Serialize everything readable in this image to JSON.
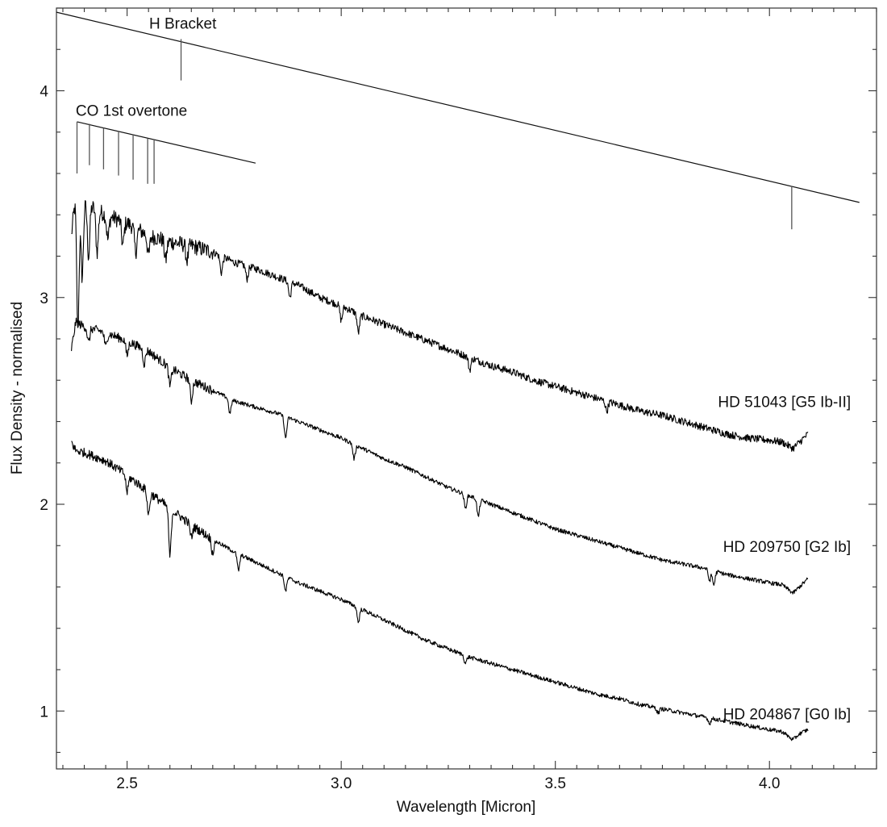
{
  "chart_data": {
    "type": "line",
    "title": "",
    "xlabel": "Wavelength [Micron]",
    "ylabel": "Flux Density - normalised",
    "xlim": [
      2.335,
      4.25
    ],
    "ylim": [
      0.72,
      4.4
    ],
    "xticks": [
      2.5,
      3.0,
      3.5,
      4.0
    ],
    "xtick_labels": [
      "2.5",
      "3.0",
      "3.5",
      "4.0"
    ],
    "yticks": [
      1,
      2,
      3,
      4
    ],
    "ytick_labels": [
      "1",
      "2",
      "3",
      "4"
    ],
    "grid": false,
    "series": [
      {
        "name": "HD 51043 [G5 Ib-II]",
        "label_at": [
          4.19,
          2.47
        ],
        "points": [
          [
            2.37,
            3.3
          ],
          [
            2.38,
            3.5
          ],
          [
            2.4,
            3.46
          ],
          [
            2.45,
            3.4
          ],
          [
            2.5,
            3.36
          ],
          [
            2.55,
            3.3
          ],
          [
            2.6,
            3.27
          ],
          [
            2.65,
            3.25
          ],
          [
            2.7,
            3.22
          ],
          [
            2.75,
            3.17
          ],
          [
            2.8,
            3.14
          ],
          [
            2.85,
            3.1
          ],
          [
            2.9,
            3.06
          ],
          [
            2.95,
            3.0
          ],
          [
            3.0,
            2.96
          ],
          [
            3.05,
            2.91
          ],
          [
            3.1,
            2.87
          ],
          [
            3.15,
            2.83
          ],
          [
            3.2,
            2.79
          ],
          [
            3.25,
            2.75
          ],
          [
            3.3,
            2.71
          ],
          [
            3.35,
            2.67
          ],
          [
            3.4,
            2.64
          ],
          [
            3.45,
            2.6
          ],
          [
            3.5,
            2.57
          ],
          [
            3.55,
            2.54
          ],
          [
            3.6,
            2.51
          ],
          [
            3.65,
            2.48
          ],
          [
            3.7,
            2.45
          ],
          [
            3.75,
            2.43
          ],
          [
            3.8,
            2.4
          ],
          [
            3.85,
            2.37
          ],
          [
            3.9,
            2.34
          ],
          [
            3.95,
            2.32
          ],
          [
            4.0,
            2.31
          ],
          [
            4.03,
            2.3
          ],
          [
            4.055,
            2.27
          ],
          [
            4.07,
            2.3
          ],
          [
            4.09,
            2.34
          ]
        ],
        "dips": [
          [
            2.385,
            2.85
          ],
          [
            2.395,
            3.1
          ],
          [
            2.41,
            3.2
          ],
          [
            2.43,
            3.22
          ],
          [
            2.455,
            3.28
          ],
          [
            2.49,
            3.25
          ],
          [
            2.52,
            3.22
          ],
          [
            2.55,
            3.2
          ],
          [
            2.59,
            3.18
          ],
          [
            2.64,
            3.18
          ],
          [
            2.72,
            3.12
          ],
          [
            2.78,
            3.09
          ],
          [
            2.88,
            3.0
          ],
          [
            3.0,
            2.89
          ],
          [
            3.04,
            2.83
          ],
          [
            3.3,
            2.65
          ],
          [
            3.62,
            2.45
          ]
        ],
        "noise": 0.018
      },
      {
        "name": "HD 209750 [G2 Ib]",
        "label_at": [
          4.19,
          1.77
        ],
        "points": [
          [
            2.37,
            2.75
          ],
          [
            2.38,
            2.88
          ],
          [
            2.4,
            2.86
          ],
          [
            2.45,
            2.83
          ],
          [
            2.5,
            2.79
          ],
          [
            2.55,
            2.74
          ],
          [
            2.6,
            2.66
          ],
          [
            2.65,
            2.6
          ],
          [
            2.7,
            2.55
          ],
          [
            2.75,
            2.5
          ],
          [
            2.8,
            2.47
          ],
          [
            2.85,
            2.44
          ],
          [
            2.9,
            2.4
          ],
          [
            2.95,
            2.36
          ],
          [
            3.0,
            2.32
          ],
          [
            3.05,
            2.27
          ],
          [
            3.1,
            2.22
          ],
          [
            3.15,
            2.18
          ],
          [
            3.2,
            2.13
          ],
          [
            3.25,
            2.08
          ],
          [
            3.3,
            2.04
          ],
          [
            3.35,
            2.0
          ],
          [
            3.4,
            1.96
          ],
          [
            3.45,
            1.92
          ],
          [
            3.5,
            1.88
          ],
          [
            3.55,
            1.85
          ],
          [
            3.6,
            1.82
          ],
          [
            3.65,
            1.79
          ],
          [
            3.7,
            1.76
          ],
          [
            3.75,
            1.73
          ],
          [
            3.8,
            1.71
          ],
          [
            3.85,
            1.69
          ],
          [
            3.9,
            1.66
          ],
          [
            3.95,
            1.64
          ],
          [
            4.0,
            1.62
          ],
          [
            4.03,
            1.61
          ],
          [
            4.055,
            1.57
          ],
          [
            4.07,
            1.6
          ],
          [
            4.09,
            1.64
          ]
        ],
        "dips": [
          [
            2.41,
            2.78
          ],
          [
            2.45,
            2.76
          ],
          [
            2.5,
            2.72
          ],
          [
            2.54,
            2.68
          ],
          [
            2.6,
            2.57
          ],
          [
            2.65,
            2.5
          ],
          [
            2.74,
            2.44
          ],
          [
            2.87,
            2.32
          ],
          [
            3.03,
            2.22
          ],
          [
            3.29,
            1.98
          ],
          [
            3.32,
            1.94
          ],
          [
            3.86,
            1.63
          ],
          [
            3.87,
            1.61
          ]
        ],
        "noise": 0.01
      },
      {
        "name": "HD 204867 [G0 Ib]",
        "label_at": [
          4.19,
          0.96
        ],
        "points": [
          [
            2.37,
            2.3
          ],
          [
            2.38,
            2.26
          ],
          [
            2.4,
            2.25
          ],
          [
            2.45,
            2.21
          ],
          [
            2.5,
            2.14
          ],
          [
            2.55,
            2.06
          ],
          [
            2.6,
            1.98
          ],
          [
            2.65,
            1.9
          ],
          [
            2.7,
            1.83
          ],
          [
            2.75,
            1.77
          ],
          [
            2.8,
            1.72
          ],
          [
            2.85,
            1.67
          ],
          [
            2.9,
            1.62
          ],
          [
            2.95,
            1.58
          ],
          [
            3.0,
            1.54
          ],
          [
            3.05,
            1.49
          ],
          [
            3.1,
            1.44
          ],
          [
            3.15,
            1.39
          ],
          [
            3.2,
            1.34
          ],
          [
            3.25,
            1.3
          ],
          [
            3.3,
            1.26
          ],
          [
            3.35,
            1.23
          ],
          [
            3.4,
            1.2
          ],
          [
            3.45,
            1.17
          ],
          [
            3.5,
            1.14
          ],
          [
            3.55,
            1.11
          ],
          [
            3.6,
            1.08
          ],
          [
            3.65,
            1.06
          ],
          [
            3.7,
            1.03
          ],
          [
            3.75,
            1.01
          ],
          [
            3.8,
            0.99
          ],
          [
            3.85,
            0.97
          ],
          [
            3.9,
            0.95
          ],
          [
            3.95,
            0.93
          ],
          [
            4.0,
            0.91
          ],
          [
            4.03,
            0.9
          ],
          [
            4.055,
            0.86
          ],
          [
            4.07,
            0.89
          ],
          [
            4.09,
            0.91
          ]
        ],
        "dips": [
          [
            2.5,
            2.06
          ],
          [
            2.55,
            1.95
          ],
          [
            2.6,
            1.75
          ],
          [
            2.65,
            1.84
          ],
          [
            2.7,
            1.76
          ],
          [
            2.76,
            1.68
          ],
          [
            2.87,
            1.58
          ],
          [
            3.04,
            1.43
          ],
          [
            3.29,
            1.23
          ],
          [
            3.74,
            0.99
          ],
          [
            3.86,
            0.94
          ]
        ],
        "noise": 0.01
      }
    ],
    "annotations": [
      {
        "text": "H Bracket",
        "line": [
          [
            2.335,
            4.38
          ],
          [
            4.21,
            3.46
          ]
        ],
        "ticks": [
          [
            2.626,
            4.25,
            4.05
          ],
          [
            4.052,
            3.54,
            3.33
          ]
        ],
        "label_at": [
          2.63,
          4.3
        ]
      },
      {
        "text": "CO 1st overtone",
        "line": [
          [
            2.383,
            3.85
          ],
          [
            2.8,
            3.65
          ]
        ],
        "ticks": [
          [
            2.383,
            3.85,
            3.6
          ],
          [
            2.412,
            3.84,
            3.64
          ],
          [
            2.445,
            3.82,
            3.62
          ],
          [
            2.48,
            3.8,
            3.59
          ],
          [
            2.514,
            3.79,
            3.57
          ],
          [
            2.548,
            3.77,
            3.55
          ],
          [
            2.563,
            3.76,
            3.55
          ]
        ],
        "label_at": [
          2.38,
          3.88
        ]
      }
    ]
  }
}
